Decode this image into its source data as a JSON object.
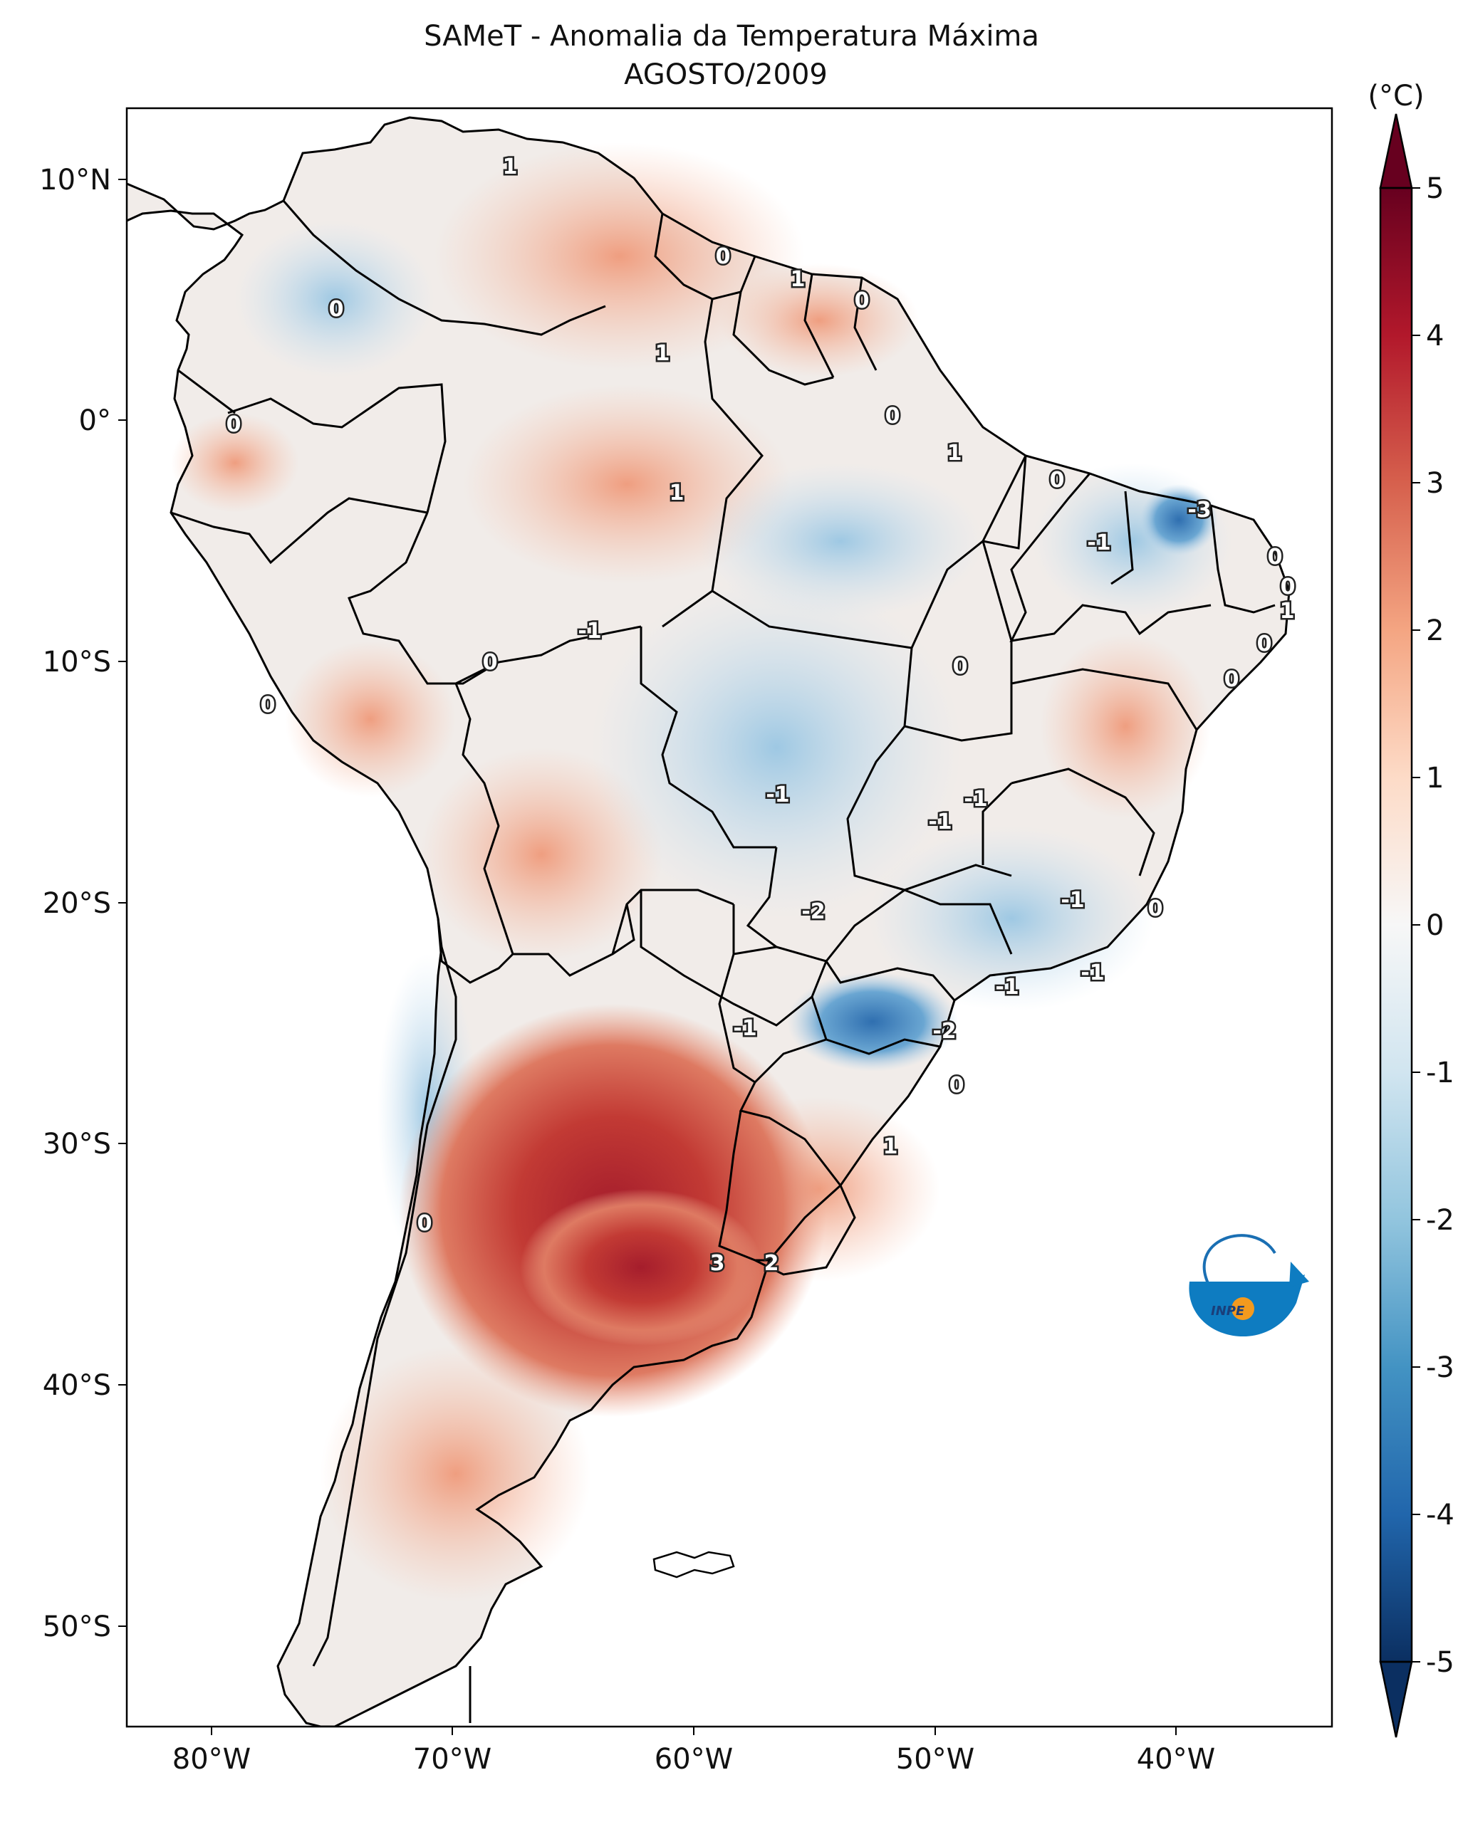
{
  "title": "SAMeT - Anomalia da Temperatura Máxima",
  "subtitle": "AGOSTO/2009",
  "colorbar": {
    "unit": "(°C)",
    "ticks": [
      "5",
      "4",
      "3",
      "2",
      "1",
      "0",
      "-1",
      "-2",
      "-3",
      "-4",
      "-5"
    ],
    "range": [
      -5,
      5
    ],
    "colors": [
      "#0b2f61",
      "#2166ac",
      "#4393c3",
      "#92c5de",
      "#d1e5f0",
      "#f7f7f7",
      "#fddbc7",
      "#f4a582",
      "#d6604d",
      "#b2182b",
      "#67001f"
    ]
  },
  "axes": {
    "lon_labels": [
      "80°W",
      "70°W",
      "60°W",
      "50°W",
      "40°W"
    ],
    "lat_labels": [
      "10°N",
      "0°",
      "10°S",
      "20°S",
      "30°S",
      "40°S",
      "50°S"
    ]
  },
  "contour_labels": [
    "1",
    "0",
    "1",
    "0",
    "0",
    "1",
    "0",
    "1",
    "1",
    "0",
    "1",
    "0",
    "-3",
    "-1",
    "0",
    "0",
    "1",
    "-1",
    "0",
    "0",
    "0",
    "0",
    "0",
    "-1",
    "-1",
    "-1",
    "-2",
    "-1",
    "0",
    "-1",
    "-1",
    "-1",
    "-2",
    "0",
    "1",
    "0",
    "3",
    "2"
  ],
  "logo_text": "INPE",
  "colors": {
    "land_line": "#000000",
    "frame": "#000000"
  }
}
